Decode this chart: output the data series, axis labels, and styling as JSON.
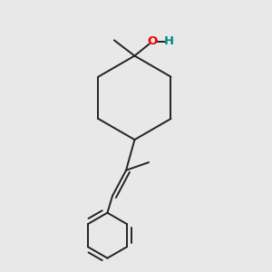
{
  "background_color": "#e8e8e8",
  "bond_color": "#222222",
  "bond_lw": 1.4,
  "O_color": "#ee0000",
  "H_color": "#008888",
  "figsize": [
    3.0,
    3.0
  ],
  "dpi": 100,
  "xlim": [
    0.15,
    0.85
  ],
  "ylim": [
    0.02,
    0.98
  ]
}
